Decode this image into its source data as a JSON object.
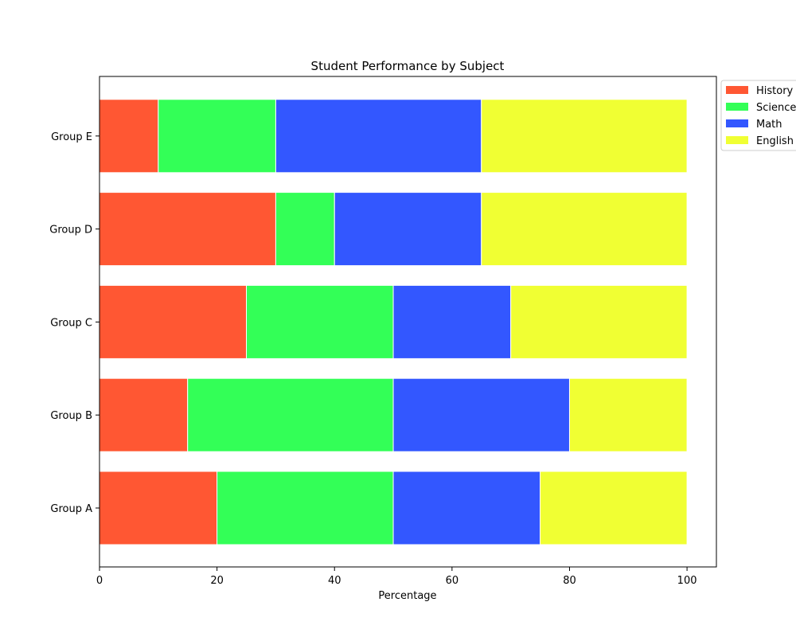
{
  "chart_data": {
    "type": "bar",
    "orientation": "horizontal",
    "stacked": true,
    "title": "Student Performance by Subject",
    "xlabel": "Percentage",
    "ylabel": "",
    "xlim": [
      0,
      105
    ],
    "xticks": [
      0,
      20,
      40,
      60,
      80,
      100
    ],
    "categories": [
      "Group A",
      "Group B",
      "Group C",
      "Group D",
      "Group E"
    ],
    "series": [
      {
        "name": "History",
        "color": "#ff5733",
        "values": [
          20,
          15,
          25,
          30,
          10
        ]
      },
      {
        "name": "Science",
        "color": "#33ff57",
        "values": [
          30,
          35,
          25,
          10,
          20
        ]
      },
      {
        "name": "Math",
        "color": "#3357ff",
        "values": [
          25,
          30,
          20,
          25,
          35
        ]
      },
      {
        "name": "English",
        "color": "#f0ff33",
        "values": [
          25,
          20,
          30,
          35,
          35
        ]
      }
    ],
    "legend_position": "outside-top-right",
    "grid": false
  }
}
